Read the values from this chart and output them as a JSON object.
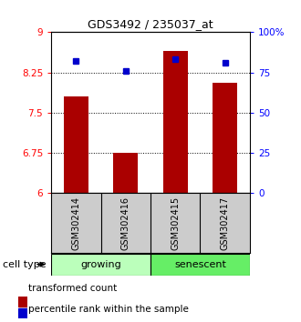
{
  "title": "GDS3492 / 235037_at",
  "samples": [
    "GSM302414",
    "GSM302416",
    "GSM302415",
    "GSM302417"
  ],
  "bar_values": [
    7.8,
    6.75,
    8.65,
    8.05
  ],
  "percentile_values": [
    82,
    76,
    83,
    81
  ],
  "ylim_left": [
    6,
    9
  ],
  "ylim_right": [
    0,
    100
  ],
  "yticks_left": [
    6,
    6.75,
    7.5,
    8.25,
    9
  ],
  "ytick_labels_left": [
    "6",
    "6.75",
    "7.5",
    "8.25",
    "9"
  ],
  "yticks_right": [
    0,
    25,
    50,
    75,
    100
  ],
  "ytick_labels_right": [
    "0",
    "25",
    "50",
    "75",
    "100%"
  ],
  "bar_color": "#aa0000",
  "dot_color": "#0000cc",
  "group_colors": [
    "#bbffbb",
    "#66ee66"
  ],
  "group_labels": [
    "growing",
    "senescent"
  ],
  "cell_type_label": "cell type",
  "legend_bar_label": "transformed count",
  "legend_dot_label": "percentile rank within the sample",
  "bg_color": "#ffffff",
  "gray_box_color": "#cccccc",
  "x_positions": [
    1,
    2,
    3,
    4
  ],
  "bar_width": 0.5
}
